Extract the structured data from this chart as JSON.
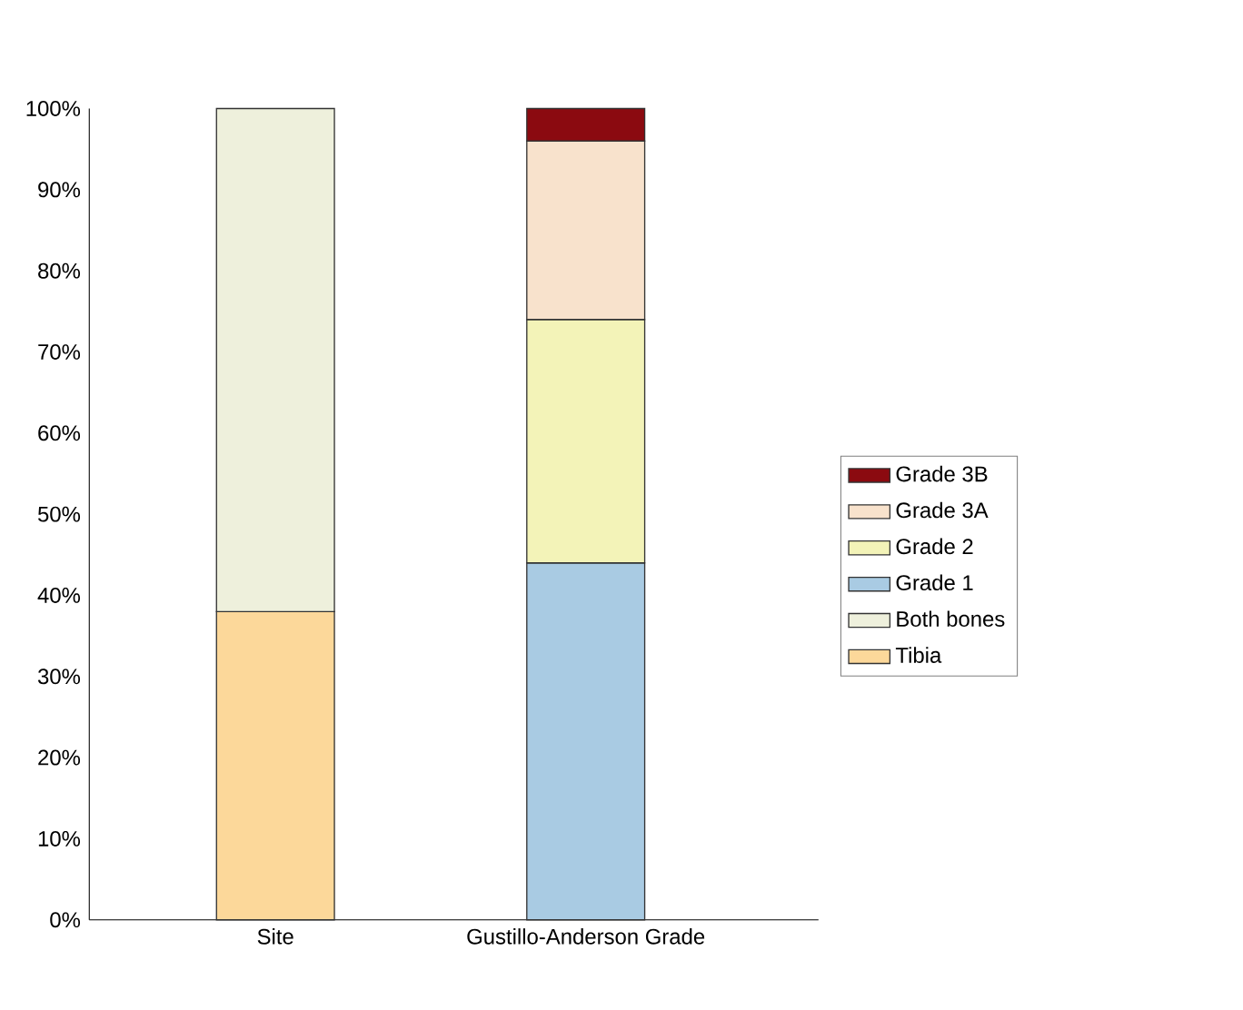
{
  "chart_data": {
    "type": "bar",
    "stacked": true,
    "categories": [
      "Site",
      "Gustillo-Anderson Grade"
    ],
    "series": [
      {
        "name": "Tibia",
        "color": "#fcd89a",
        "values": [
          38,
          null
        ]
      },
      {
        "name": "Both bones",
        "color": "#eef0dc",
        "values": [
          62,
          null
        ]
      },
      {
        "name": "Grade 1",
        "color": "#a9cbe3",
        "values": [
          null,
          44
        ]
      },
      {
        "name": "Grade 2",
        "color": "#f3f3b8",
        "values": [
          null,
          30
        ]
      },
      {
        "name": "Grade 3A",
        "color": "#f8e2cc",
        "values": [
          null,
          22
        ]
      },
      {
        "name": "Grade 3B",
        "color": "#8b0a10",
        "values": [
          null,
          4
        ]
      }
    ],
    "ylim": [
      0,
      100
    ],
    "yticks": [
      {
        "value": 0,
        "label": "0%"
      },
      {
        "value": 10,
        "label": "10%"
      },
      {
        "value": 20,
        "label": "20%"
      },
      {
        "value": 30,
        "label": "30%"
      },
      {
        "value": 40,
        "label": "40%"
      },
      {
        "value": 50,
        "label": "50%"
      },
      {
        "value": 60,
        "label": "60%"
      },
      {
        "value": 70,
        "label": "70%"
      },
      {
        "value": 80,
        "label": "80%"
      },
      {
        "value": 90,
        "label": "90%"
      },
      {
        "value": 100,
        "label": "100%"
      }
    ],
    "legend": "right"
  }
}
